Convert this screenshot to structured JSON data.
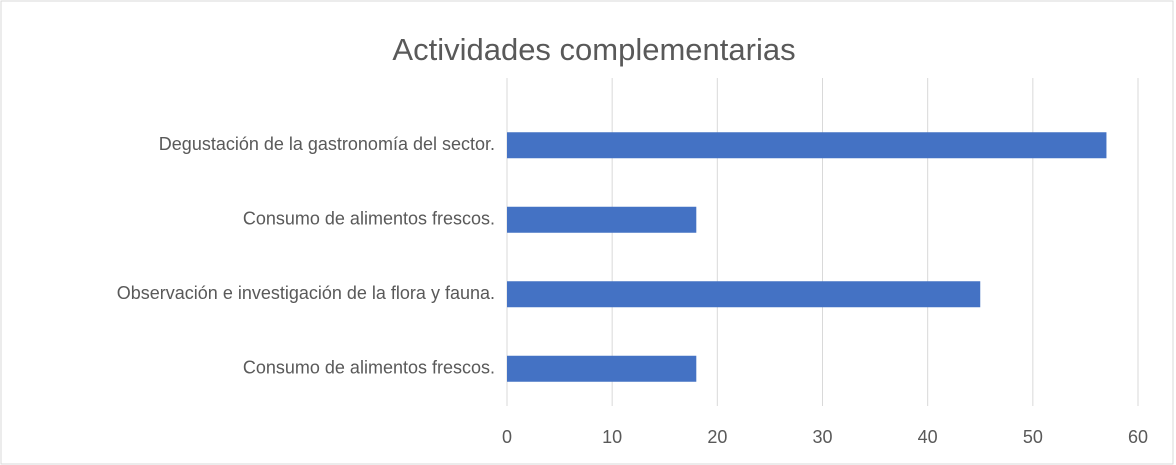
{
  "chart_data": {
    "type": "bar",
    "orientation": "horizontal",
    "title": "Actividades complementarias",
    "categories": [
      "Degustación de la gastronomía del sector.",
      "Consumo de alimentos frescos.",
      "Observación e investigación de la flora y fauna.",
      "Consumo de alimentos frescos."
    ],
    "values": [
      57,
      18,
      45,
      18
    ],
    "color": "#4472c4",
    "xlim": [
      0,
      60
    ],
    "xticks": [
      0,
      10,
      20,
      30,
      40,
      50,
      60
    ],
    "grid": true
  }
}
